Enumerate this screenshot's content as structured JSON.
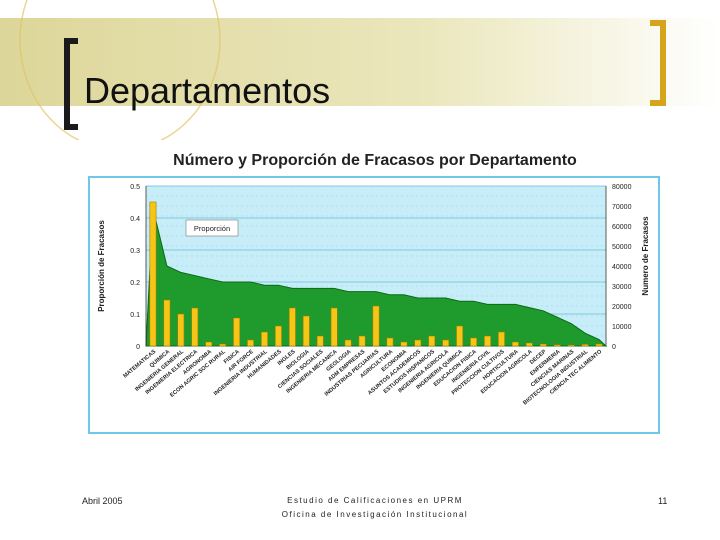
{
  "slide": {
    "title": "Departamentos",
    "footer_date": "Abril 2005",
    "footer_line1": "Estudio de Calificaciones en UPRM",
    "footer_line2": "Oficina de Investigación Institucional",
    "page_number": "11"
  },
  "colors": {
    "header_band": "#e4dfa3",
    "bracket_left": "#1a1a1a",
    "bracket_right": "#d4a51a",
    "area_fill": "#1f9a2c",
    "bar_fill": "#f5c518",
    "plot_bg": "#c7eef8",
    "frame": "#6fc8e8"
  },
  "chart_data": {
    "type": "bar",
    "title": "Número y Proporción de Fracasos por Departamento",
    "ylabel": "Proporción de Fracasos",
    "y2label": "Numero de Fracasos",
    "ylim": [
      0,
      0.5
    ],
    "y2lim": [
      0,
      80000
    ],
    "yticks": [
      "0",
      "0.1",
      "0.2",
      "0.3",
      "0.4",
      "0.5"
    ],
    "y2ticks": [
      "0",
      "10000",
      "20000",
      "30000",
      "40000",
      "50000",
      "60000",
      "70000",
      "80000"
    ],
    "annotation": "Proporción",
    "grid": true,
    "categories": [
      "MATEMATICAS",
      "QUIMICA",
      "INGENIERIA GENERAL",
      "INGENIERIA ELECTRICA",
      "AGRONOMIA",
      "ECON AGRIC SOC RURAL",
      "FISICA",
      "AIR FORCE",
      "INGENIERIA INDUSTRIAL",
      "HUMANIDADES",
      "INGLES",
      "BIOLOGIA",
      "CIENCIAS SOCIALES",
      "INGENIERIA MECANICA",
      "GEOLOGIA",
      "ADM EMPRESAS",
      "INDUSTRIAS PECUARIAS",
      "AGRICULTURA",
      "ECONOMIA",
      "ASUNTOS ACADEMICOS",
      "ESTUDIOS HISPANICOS",
      "INGENIERIA AGRICOLA",
      "INGENIERIA QUIMICA",
      "EDUCACION FISICA",
      "INGENIERIA CIVIL",
      "PROTECCION CULTIVOS",
      "HORTICULTURA",
      "EDUCACION AGRICOLA",
      "DECEP",
      "ENFERMERIA",
      "CIENCIAS MARINAS",
      "BIOTECNOLOGIA INDUSTRIAL",
      "CIENCIA TEC ALIMENTO"
    ],
    "series": [
      {
        "name": "Proporción",
        "type": "area",
        "values": [
          0.43,
          0.25,
          0.23,
          0.22,
          0.21,
          0.2,
          0.2,
          0.2,
          0.19,
          0.19,
          0.18,
          0.18,
          0.18,
          0.18,
          0.17,
          0.17,
          0.17,
          0.16,
          0.16,
          0.15,
          0.15,
          0.15,
          0.14,
          0.14,
          0.13,
          0.13,
          0.13,
          0.12,
          0.11,
          0.09,
          0.07,
          0.04,
          0.02
        ]
      },
      {
        "type": "bar",
        "values": [
          72000,
          23000,
          16000,
          19000,
          2000,
          1000,
          14000,
          3000,
          7000,
          10000,
          19000,
          15000,
          5000,
          19000,
          3000,
          5000,
          20000,
          4000,
          2000,
          3000,
          5000,
          3000,
          10000,
          4000,
          5000,
          7000,
          2000,
          1500,
          1000,
          600,
          500,
          800,
          1000
        ]
      }
    ]
  }
}
